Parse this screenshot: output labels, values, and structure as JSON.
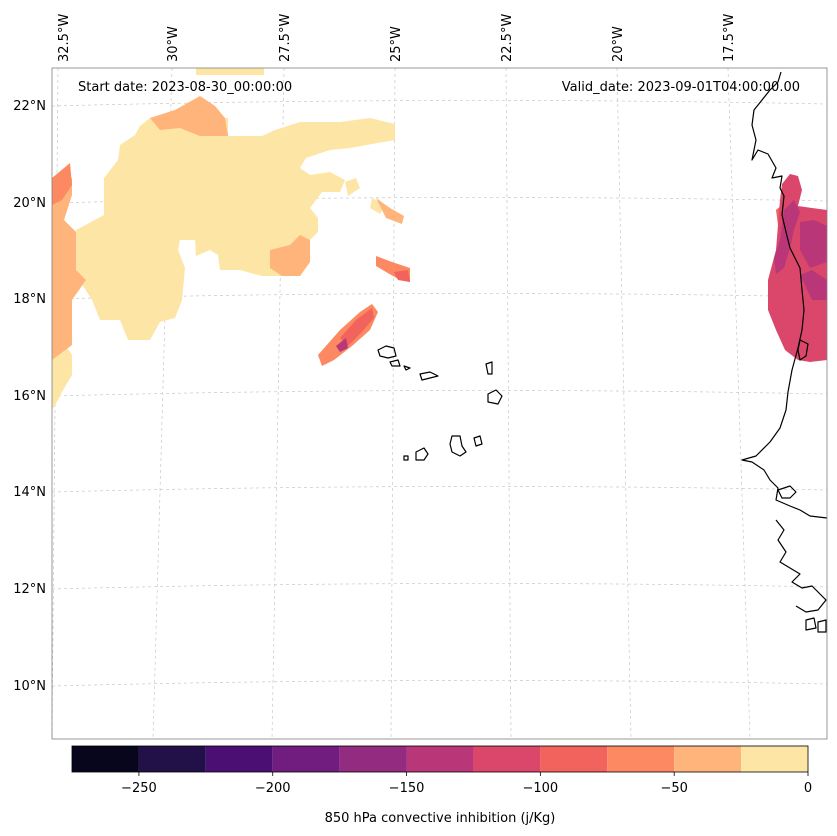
{
  "header": {
    "start_date": "Start date: 2023-08-30_00:00:00",
    "valid_date": "Valid_date: 2023-09-01T04:00:00.00"
  },
  "longitude_labels": [
    "32.5°W",
    "30°W",
    "27.5°W",
    "25°W",
    "22.5°W",
    "20°W",
    "17.5°W"
  ],
  "latitude_labels": [
    "22°N",
    "20°N",
    "18°N",
    "16°N",
    "14°N",
    "12°N",
    "10°N"
  ],
  "colorbar": {
    "label": "850 hPa convective inhibition (j/Kg)",
    "tick_labels": [
      "−250",
      "−200",
      "−150",
      "−100",
      "−50",
      "0"
    ],
    "bins": [
      -275,
      -250,
      -225,
      -200,
      -175,
      -150,
      -125,
      -100,
      -75,
      -50,
      -25,
      0
    ],
    "colors": [
      "#08061d",
      "#221149",
      "#4b0f73",
      "#711d80",
      "#932b80",
      "#b93779",
      "#db476a",
      "#f1635c",
      "#fc8961",
      "#feb47b",
      "#fde6a5"
    ]
  },
  "colors": {
    "gridline": "#c8c8c8",
    "coastline": "#000000",
    "map_border": "#808080"
  }
}
